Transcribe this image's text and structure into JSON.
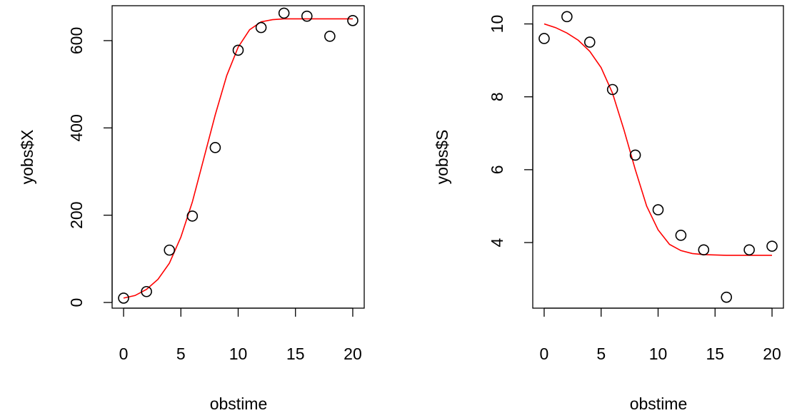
{
  "colors": {
    "fit_line": "#ff0000",
    "points": "#000000",
    "background": "#ffffff"
  },
  "chart_data": [
    {
      "type": "scatter",
      "title": "",
      "xlabel": "obstime",
      "ylabel": "yobs$X",
      "xlim": [
        -1,
        21
      ],
      "ylim": [
        -13,
        680
      ],
      "xticks": [
        0,
        5,
        10,
        15,
        20
      ],
      "yticks": [
        0,
        200,
        400,
        600
      ],
      "grid": false,
      "legend": "none",
      "series": [
        {
          "kind": "points",
          "x": [
            0,
            2,
            4,
            6,
            8,
            10,
            12,
            14,
            16,
            18,
            20
          ],
          "y": [
            10,
            25,
            120,
            198,
            355,
            578,
            630,
            663,
            656,
            610,
            646
          ]
        },
        {
          "kind": "fitted-line",
          "x": [
            0,
            1,
            2,
            3,
            4,
            5,
            6,
            7,
            8,
            9,
            10,
            11,
            12,
            13,
            14,
            15,
            16,
            17,
            18,
            19,
            20
          ],
          "y": [
            10,
            16,
            30,
            53,
            90,
            150,
            230,
            330,
            430,
            520,
            585,
            625,
            643,
            648,
            650,
            650,
            650,
            650,
            650,
            650,
            650
          ]
        }
      ]
    },
    {
      "type": "scatter",
      "title": "",
      "xlabel": "obstime",
      "ylabel": "yobs$S",
      "xlim": [
        -1,
        21
      ],
      "ylim": [
        2.2,
        10.5
      ],
      "xticks": [
        0,
        5,
        10,
        15,
        20
      ],
      "yticks": [
        4,
        6,
        8,
        10
      ],
      "grid": false,
      "legend": "none",
      "series": [
        {
          "kind": "points",
          "x": [
            0,
            2,
            4,
            6,
            8,
            10,
            12,
            14,
            16,
            18,
            20
          ],
          "y": [
            9.6,
            10.2,
            9.5,
            8.2,
            6.4,
            4.9,
            4.2,
            3.8,
            2.5,
            3.8,
            3.9
          ]
        },
        {
          "kind": "fitted-line",
          "x": [
            0,
            1,
            2,
            3,
            4,
            5,
            6,
            7,
            8,
            9,
            10,
            11,
            12,
            13,
            14,
            15,
            16,
            17,
            18,
            19,
            20
          ],
          "y": [
            10.0,
            9.9,
            9.75,
            9.55,
            9.25,
            8.8,
            8.1,
            7.1,
            6.0,
            5.0,
            4.35,
            3.95,
            3.78,
            3.7,
            3.67,
            3.66,
            3.65,
            3.65,
            3.65,
            3.65,
            3.65
          ]
        }
      ]
    }
  ]
}
